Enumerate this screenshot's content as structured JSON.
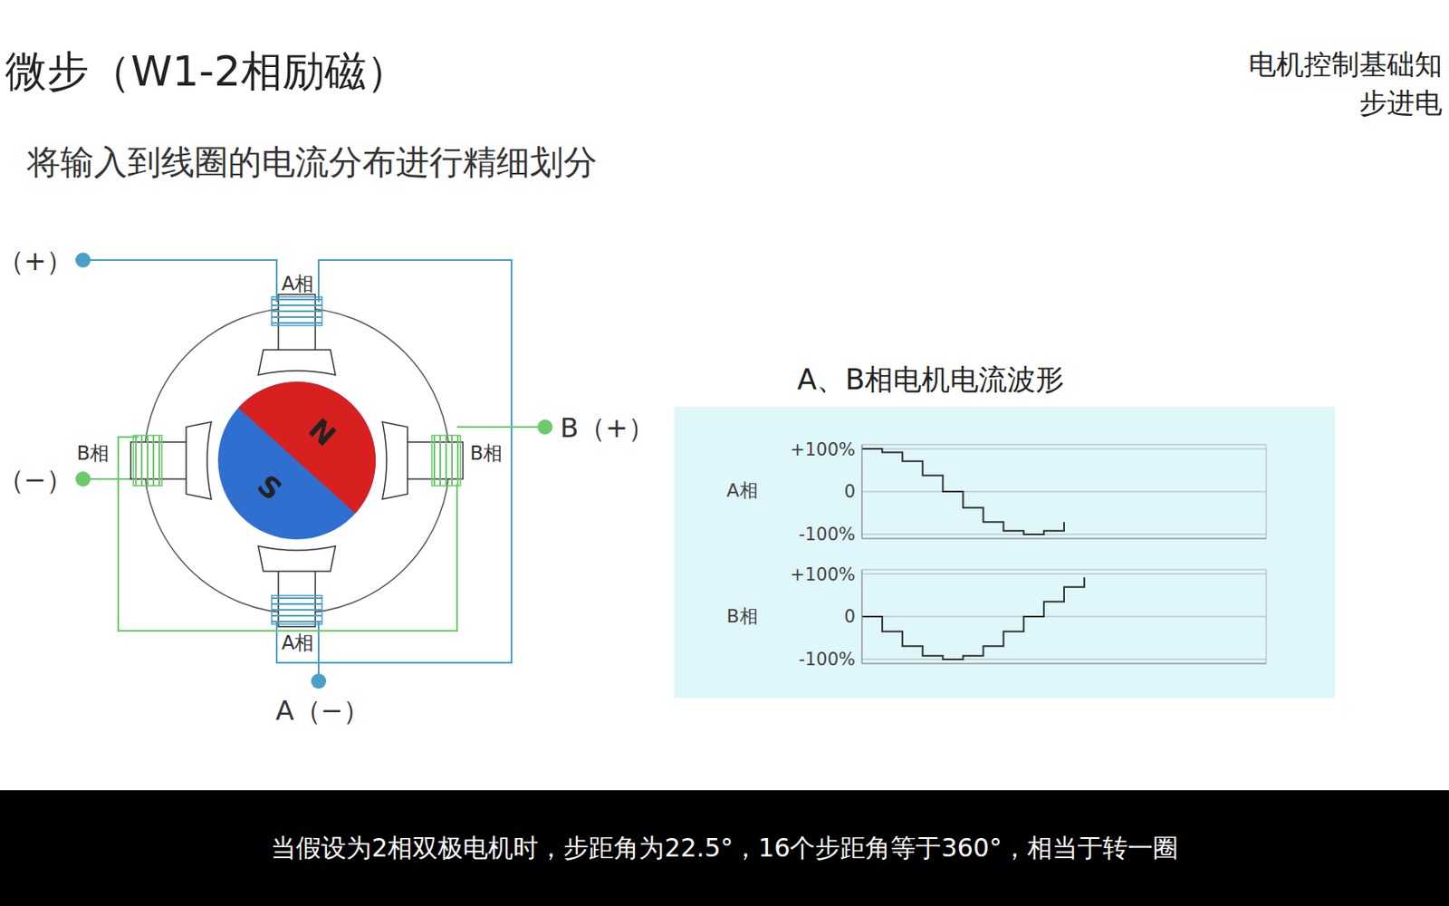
{
  "header": {
    "title": "微步（W1-2相励磁）",
    "top_right": [
      "电机控制基础知",
      "步进电"
    ]
  },
  "subtitle": "将输入到线圈的电流分布进行精细划分",
  "diagram": {
    "phases": {
      "a_top": "A相",
      "a_bottom": "A相",
      "b_left": "B相",
      "b_right": "B相"
    },
    "terminals": {
      "a_plus": "（+）",
      "b_minus": "（−）",
      "b_plus": "B（+）",
      "a_minus": "A（−）"
    },
    "rotor": {
      "north": "N",
      "south": "S"
    }
  },
  "panel_title": "A、B相电机电流波形",
  "chart_data": [
    {
      "type": "line",
      "ylabel": "A相",
      "x": [
        0,
        1,
        2,
        3,
        4,
        5,
        6,
        7,
        8,
        9,
        10
      ],
      "values": [
        100,
        92,
        71,
        38,
        0,
        -38,
        -71,
        -92,
        -100,
        -92,
        -71
      ],
      "color": "#333333",
      "line_style": "step",
      "xlim": [
        0,
        20
      ],
      "xticks": [
        0,
        1,
        2,
        3,
        4,
        5,
        6,
        7,
        8,
        9,
        10,
        11,
        12,
        13,
        14,
        15,
        16,
        17,
        18,
        19,
        20
      ],
      "ylim": [
        -110,
        110
      ],
      "yticks": [
        {
          "value": -100,
          "label": "-100%"
        },
        0,
        {
          "value": 100,
          "label": "+100%"
        }
      ],
      "grid": true,
      "tick_labels": "y"
    },
    {
      "type": "line",
      "ylabel": "B相",
      "x": [
        0,
        1,
        2,
        3,
        4,
        5,
        6,
        7,
        8,
        9,
        10,
        11
      ],
      "values": [
        0,
        -35,
        -69,
        -92,
        -100,
        -92,
        -69,
        -35,
        0,
        35,
        69,
        92
      ],
      "color": "#333333",
      "line_style": "step",
      "xlim": [
        0,
        20
      ],
      "xticks": [
        0,
        1,
        2,
        3,
        4,
        5,
        6,
        7,
        8,
        9,
        10,
        11,
        12,
        13,
        14,
        15,
        16,
        17,
        18,
        19,
        20
      ],
      "ylim": [
        -110,
        110
      ],
      "yticks": [
        {
          "value": -100,
          "label": "-100%"
        },
        0,
        {
          "value": 100,
          "label": "+100%"
        }
      ],
      "grid": true,
      "tick_labels": "y"
    }
  ],
  "caption": "当假设为2相双极电机时，步距角为22.5°，16个步距角等于360°，相当于转一圈"
}
